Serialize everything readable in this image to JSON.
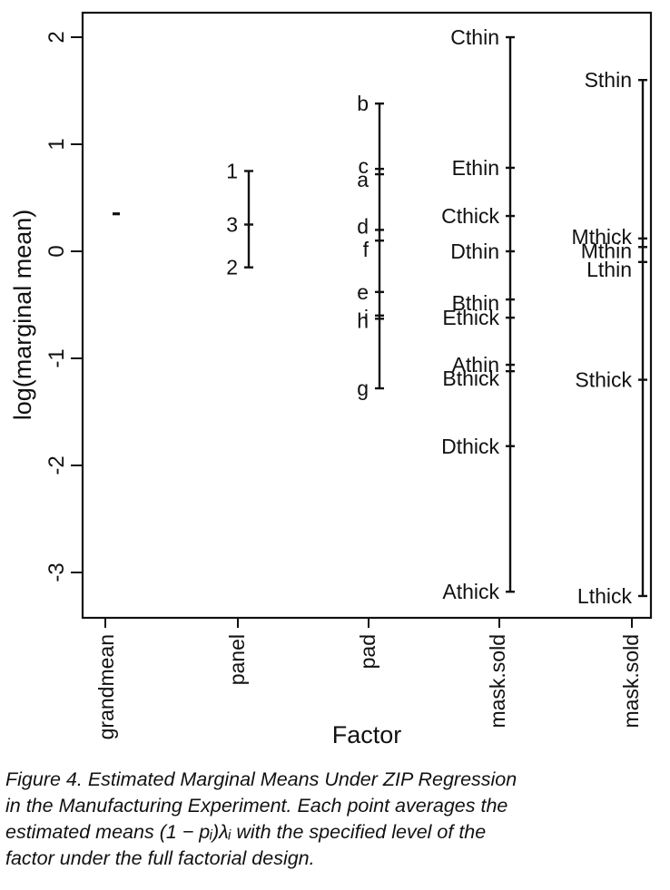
{
  "chart_data": {
    "type": "scatter",
    "xlabel": "Factor",
    "ylabel": "log(marginal mean)",
    "ylim": [
      -3.4,
      2.2
    ],
    "yticks": [
      -3,
      -2,
      -1,
      0,
      1,
      2
    ],
    "ytick_labels": [
      "-3",
      "-2",
      "-1",
      "0",
      "1",
      "2"
    ],
    "grid": false,
    "categories": [
      "grandmean",
      "panel",
      "pad",
      "mask.sold",
      "mask.sold"
    ],
    "groups": [
      {
        "category": "grandmean",
        "points": [
          {
            "label": "",
            "y": 0.35
          }
        ]
      },
      {
        "category": "panel",
        "range": [
          -0.15,
          0.75
        ],
        "points": [
          {
            "label": "1",
            "y": 0.75
          },
          {
            "label": "3",
            "y": 0.25
          },
          {
            "label": "2",
            "y": -0.15
          }
        ]
      },
      {
        "category": "pad",
        "range": [
          -1.28,
          1.38
        ],
        "points": [
          {
            "label": "b",
            "y": 1.38
          },
          {
            "label": "c",
            "y": 0.77
          },
          {
            "label": "a",
            "y": 0.72
          },
          {
            "label": "d",
            "y": 0.2
          },
          {
            "label": "f",
            "y": 0.1
          },
          {
            "label": "e",
            "y": -0.38
          },
          {
            "label": "h",
            "y": -0.63
          },
          {
            "label": "i",
            "y": -0.6
          },
          {
            "label": "g",
            "y": -1.28
          }
        ]
      },
      {
        "category": "mask.sold",
        "range": [
          -3.18,
          2.0
        ],
        "points": [
          {
            "label": "Cthin",
            "y": 2.0
          },
          {
            "label": "Ethin",
            "y": 0.78
          },
          {
            "label": "Cthick",
            "y": 0.33
          },
          {
            "label": "Dthin",
            "y": 0.0
          },
          {
            "label": "Bthin",
            "y": -0.45
          },
          {
            "label": "Ethick",
            "y": -0.62
          },
          {
            "label": "Athin",
            "y": -1.06
          },
          {
            "label": "Bthick",
            "y": -1.12
          },
          {
            "label": "Dthick",
            "y": -1.82
          },
          {
            "label": "Athick",
            "y": -3.18
          }
        ]
      },
      {
        "category": "mask.sold",
        "range": [
          -3.22,
          1.6
        ],
        "points": [
          {
            "label": "Sthin",
            "y": 1.6
          },
          {
            "label": "Mthick",
            "y": 0.12
          },
          {
            "label": "Mthin",
            "y": 0.04
          },
          {
            "label": "Lthin",
            "y": -0.1
          },
          {
            "label": "Sthick",
            "y": -1.2
          },
          {
            "label": "Lthick",
            "y": -3.22
          }
        ]
      }
    ]
  },
  "caption": {
    "lines": [
      "Figure 4.  Estimated Marginal Means Under ZIP Regression",
      "in the Manufacturing Experiment. Each point averages the",
      "estimated means (1 − pᵢ)λᵢ with the specified level of the",
      "factor under the full factorial design."
    ]
  }
}
